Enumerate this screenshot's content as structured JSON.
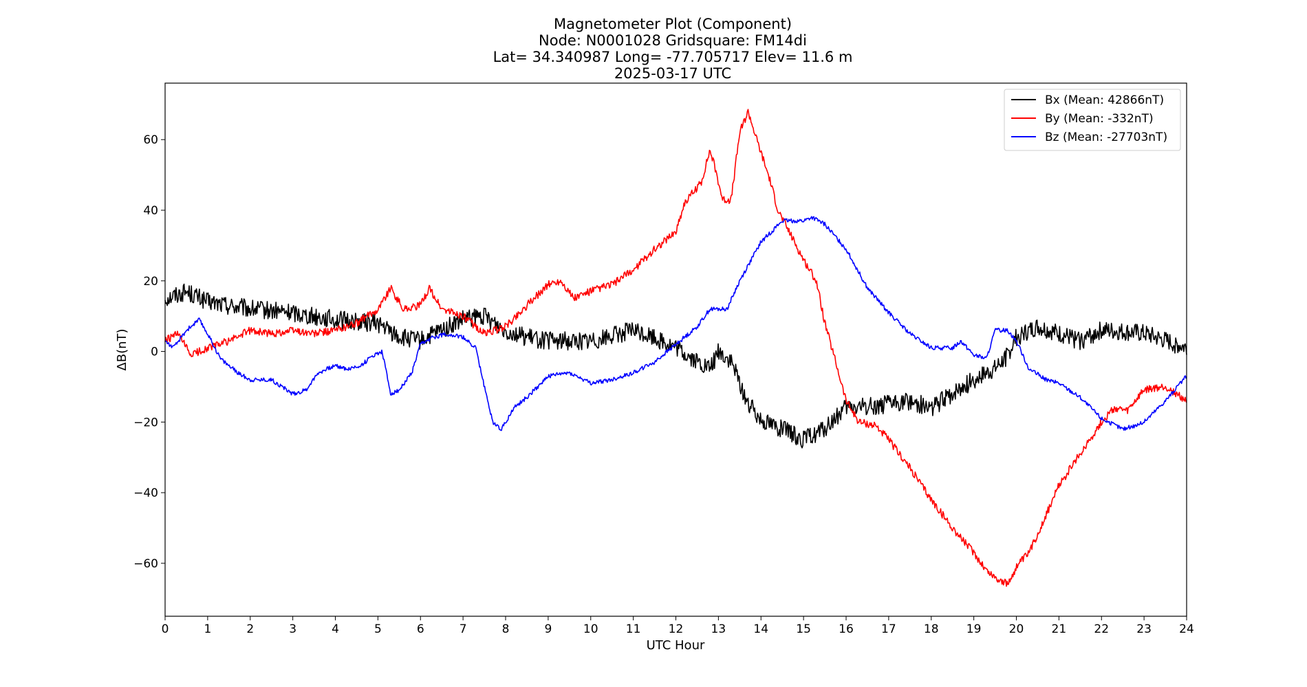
{
  "chart_data": {
    "type": "line",
    "title_lines": [
      "Magnetometer Plot (Component)",
      "Node:  N0001028     Gridsquare:  FM14di",
      "Lat= 34.340987    Long= -77.705717    Elev= 11.6 m",
      "2025-03-17  UTC"
    ],
    "xlabel": "UTC Hour",
    "ylabel": "ΔB(nT)",
    "xlim": [
      0,
      24
    ],
    "ylim": [
      -75,
      76
    ],
    "x_ticks": [
      0,
      1,
      2,
      3,
      4,
      5,
      6,
      7,
      8,
      9,
      10,
      11,
      12,
      13,
      14,
      15,
      16,
      17,
      18,
      19,
      20,
      21,
      22,
      23,
      24
    ],
    "y_ticks": [
      -60,
      -40,
      -20,
      0,
      20,
      40,
      60
    ],
    "grid": false,
    "legend_position": "top-right",
    "series": [
      {
        "name": "Bx (Mean: 42866nT)",
        "color": "#000000",
        "points": [
          [
            0,
            15
          ],
          [
            0.5,
            17
          ],
          [
            1,
            14
          ],
          [
            2,
            12
          ],
          [
            3,
            11
          ],
          [
            4,
            9
          ],
          [
            5,
            8
          ],
          [
            5.5,
            4
          ],
          [
            6,
            3
          ],
          [
            6.5,
            6
          ],
          [
            7,
            9
          ],
          [
            7.5,
            10
          ],
          [
            8,
            6
          ],
          [
            8.5,
            4
          ],
          [
            9,
            3
          ],
          [
            10,
            3
          ],
          [
            11,
            6
          ],
          [
            11.5,
            4
          ],
          [
            12,
            1
          ],
          [
            12.5,
            -3
          ],
          [
            12.8,
            -5
          ],
          [
            13,
            0
          ],
          [
            13.3,
            -3
          ],
          [
            13.7,
            -15
          ],
          [
            14,
            -19
          ],
          [
            14.5,
            -22
          ],
          [
            15,
            -25
          ],
          [
            15.5,
            -22
          ],
          [
            16,
            -16
          ],
          [
            17,
            -15
          ],
          [
            17.5,
            -14
          ],
          [
            18,
            -16
          ],
          [
            18.5,
            -12
          ],
          [
            19,
            -8
          ],
          [
            19.5,
            -5
          ],
          [
            19.8,
            -1
          ],
          [
            20,
            4
          ],
          [
            20.5,
            7
          ],
          [
            21,
            5
          ],
          [
            21.5,
            3
          ],
          [
            22,
            6
          ],
          [
            23,
            5
          ],
          [
            24,
            1
          ]
        ]
      },
      {
        "name": "By (Mean: -332nT)",
        "color": "#ff0000",
        "points": [
          [
            0,
            3
          ],
          [
            0.3,
            5
          ],
          [
            0.6,
            -1
          ],
          [
            0.8,
            0
          ],
          [
            1,
            1
          ],
          [
            1.5,
            3
          ],
          [
            2,
            6
          ],
          [
            2.5,
            5
          ],
          [
            3,
            6
          ],
          [
            3.5,
            5
          ],
          [
            4,
            6
          ],
          [
            4.5,
            8
          ],
          [
            5,
            12
          ],
          [
            5.3,
            18
          ],
          [
            5.6,
            12
          ],
          [
            6,
            13
          ],
          [
            6.2,
            18
          ],
          [
            6.5,
            12
          ],
          [
            7,
            10
          ],
          [
            7.5,
            5
          ],
          [
            8,
            7
          ],
          [
            8.5,
            13
          ],
          [
            9,
            19
          ],
          [
            9.3,
            20
          ],
          [
            9.6,
            15
          ],
          [
            10,
            17
          ],
          [
            10.5,
            19
          ],
          [
            11,
            23
          ],
          [
            11.5,
            29
          ],
          [
            12,
            34
          ],
          [
            12.2,
            42
          ],
          [
            12.6,
            48
          ],
          [
            12.8,
            57
          ],
          [
            12.9,
            53
          ],
          [
            13.1,
            43
          ],
          [
            13.3,
            43
          ],
          [
            13.5,
            62
          ],
          [
            13.7,
            68
          ],
          [
            13.9,
            60
          ],
          [
            14.2,
            49
          ],
          [
            14.4,
            40
          ],
          [
            14.7,
            33
          ],
          [
            15,
            26
          ],
          [
            15.3,
            20
          ],
          [
            15.5,
            8
          ],
          [
            15.8,
            -5
          ],
          [
            16,
            -14
          ],
          [
            16.3,
            -20
          ],
          [
            16.7,
            -21
          ],
          [
            17,
            -25
          ],
          [
            17.5,
            -33
          ],
          [
            18,
            -42
          ],
          [
            18.5,
            -50
          ],
          [
            19,
            -57
          ],
          [
            19.3,
            -62
          ],
          [
            19.5,
            -64
          ],
          [
            19.8,
            -66
          ],
          [
            20,
            -61
          ],
          [
            20.3,
            -57
          ],
          [
            20.6,
            -49
          ],
          [
            21,
            -38
          ],
          [
            21.5,
            -29
          ],
          [
            22,
            -20
          ],
          [
            22.3,
            -16
          ],
          [
            22.6,
            -17
          ],
          [
            23,
            -11
          ],
          [
            23.5,
            -10
          ],
          [
            24,
            -14
          ]
        ]
      },
      {
        "name": "Bz (Mean: -27703nT)",
        "color": "#0000ff",
        "points": [
          [
            0,
            3
          ],
          [
            0.2,
            1
          ],
          [
            0.5,
            6
          ],
          [
            0.8,
            9
          ],
          [
            1,
            5
          ],
          [
            1.3,
            -2
          ],
          [
            1.7,
            -6
          ],
          [
            2,
            -8
          ],
          [
            2.5,
            -8
          ],
          [
            3,
            -12
          ],
          [
            3.3,
            -11
          ],
          [
            3.6,
            -6
          ],
          [
            4,
            -4
          ],
          [
            4.3,
            -5
          ],
          [
            4.6,
            -4
          ],
          [
            4.9,
            -1
          ],
          [
            5.1,
            0
          ],
          [
            5.3,
            -12
          ],
          [
            5.5,
            -11
          ],
          [
            5.8,
            -6
          ],
          [
            6,
            2
          ],
          [
            6.3,
            4
          ],
          [
            6.6,
            5
          ],
          [
            7,
            4
          ],
          [
            7.3,
            1
          ],
          [
            7.5,
            -10
          ],
          [
            7.7,
            -20
          ],
          [
            7.9,
            -22
          ],
          [
            8.2,
            -16
          ],
          [
            8.5,
            -13
          ],
          [
            9,
            -7
          ],
          [
            9.5,
            -6
          ],
          [
            10,
            -9
          ],
          [
            10.5,
            -8
          ],
          [
            11,
            -6
          ],
          [
            11.5,
            -3
          ],
          [
            12,
            2
          ],
          [
            12.5,
            7
          ],
          [
            12.8,
            12
          ],
          [
            13.2,
            12
          ],
          [
            13.5,
            20
          ],
          [
            14,
            31
          ],
          [
            14.5,
            37
          ],
          [
            15,
            37
          ],
          [
            15.2,
            38
          ],
          [
            15.5,
            36
          ],
          [
            16,
            29
          ],
          [
            16.5,
            18
          ],
          [
            17,
            11
          ],
          [
            17.5,
            5
          ],
          [
            18,
            1
          ],
          [
            18.5,
            1
          ],
          [
            18.7,
            3
          ],
          [
            19,
            -1
          ],
          [
            19.3,
            -2
          ],
          [
            19.5,
            6
          ],
          [
            19.8,
            6
          ],
          [
            20,
            3
          ],
          [
            20.3,
            -5
          ],
          [
            20.7,
            -8
          ],
          [
            21,
            -9
          ],
          [
            21.5,
            -13
          ],
          [
            22,
            -19
          ],
          [
            22.5,
            -22
          ],
          [
            22.8,
            -21
          ],
          [
            23,
            -20
          ],
          [
            23.5,
            -14
          ],
          [
            24,
            -7
          ]
        ]
      }
    ]
  }
}
